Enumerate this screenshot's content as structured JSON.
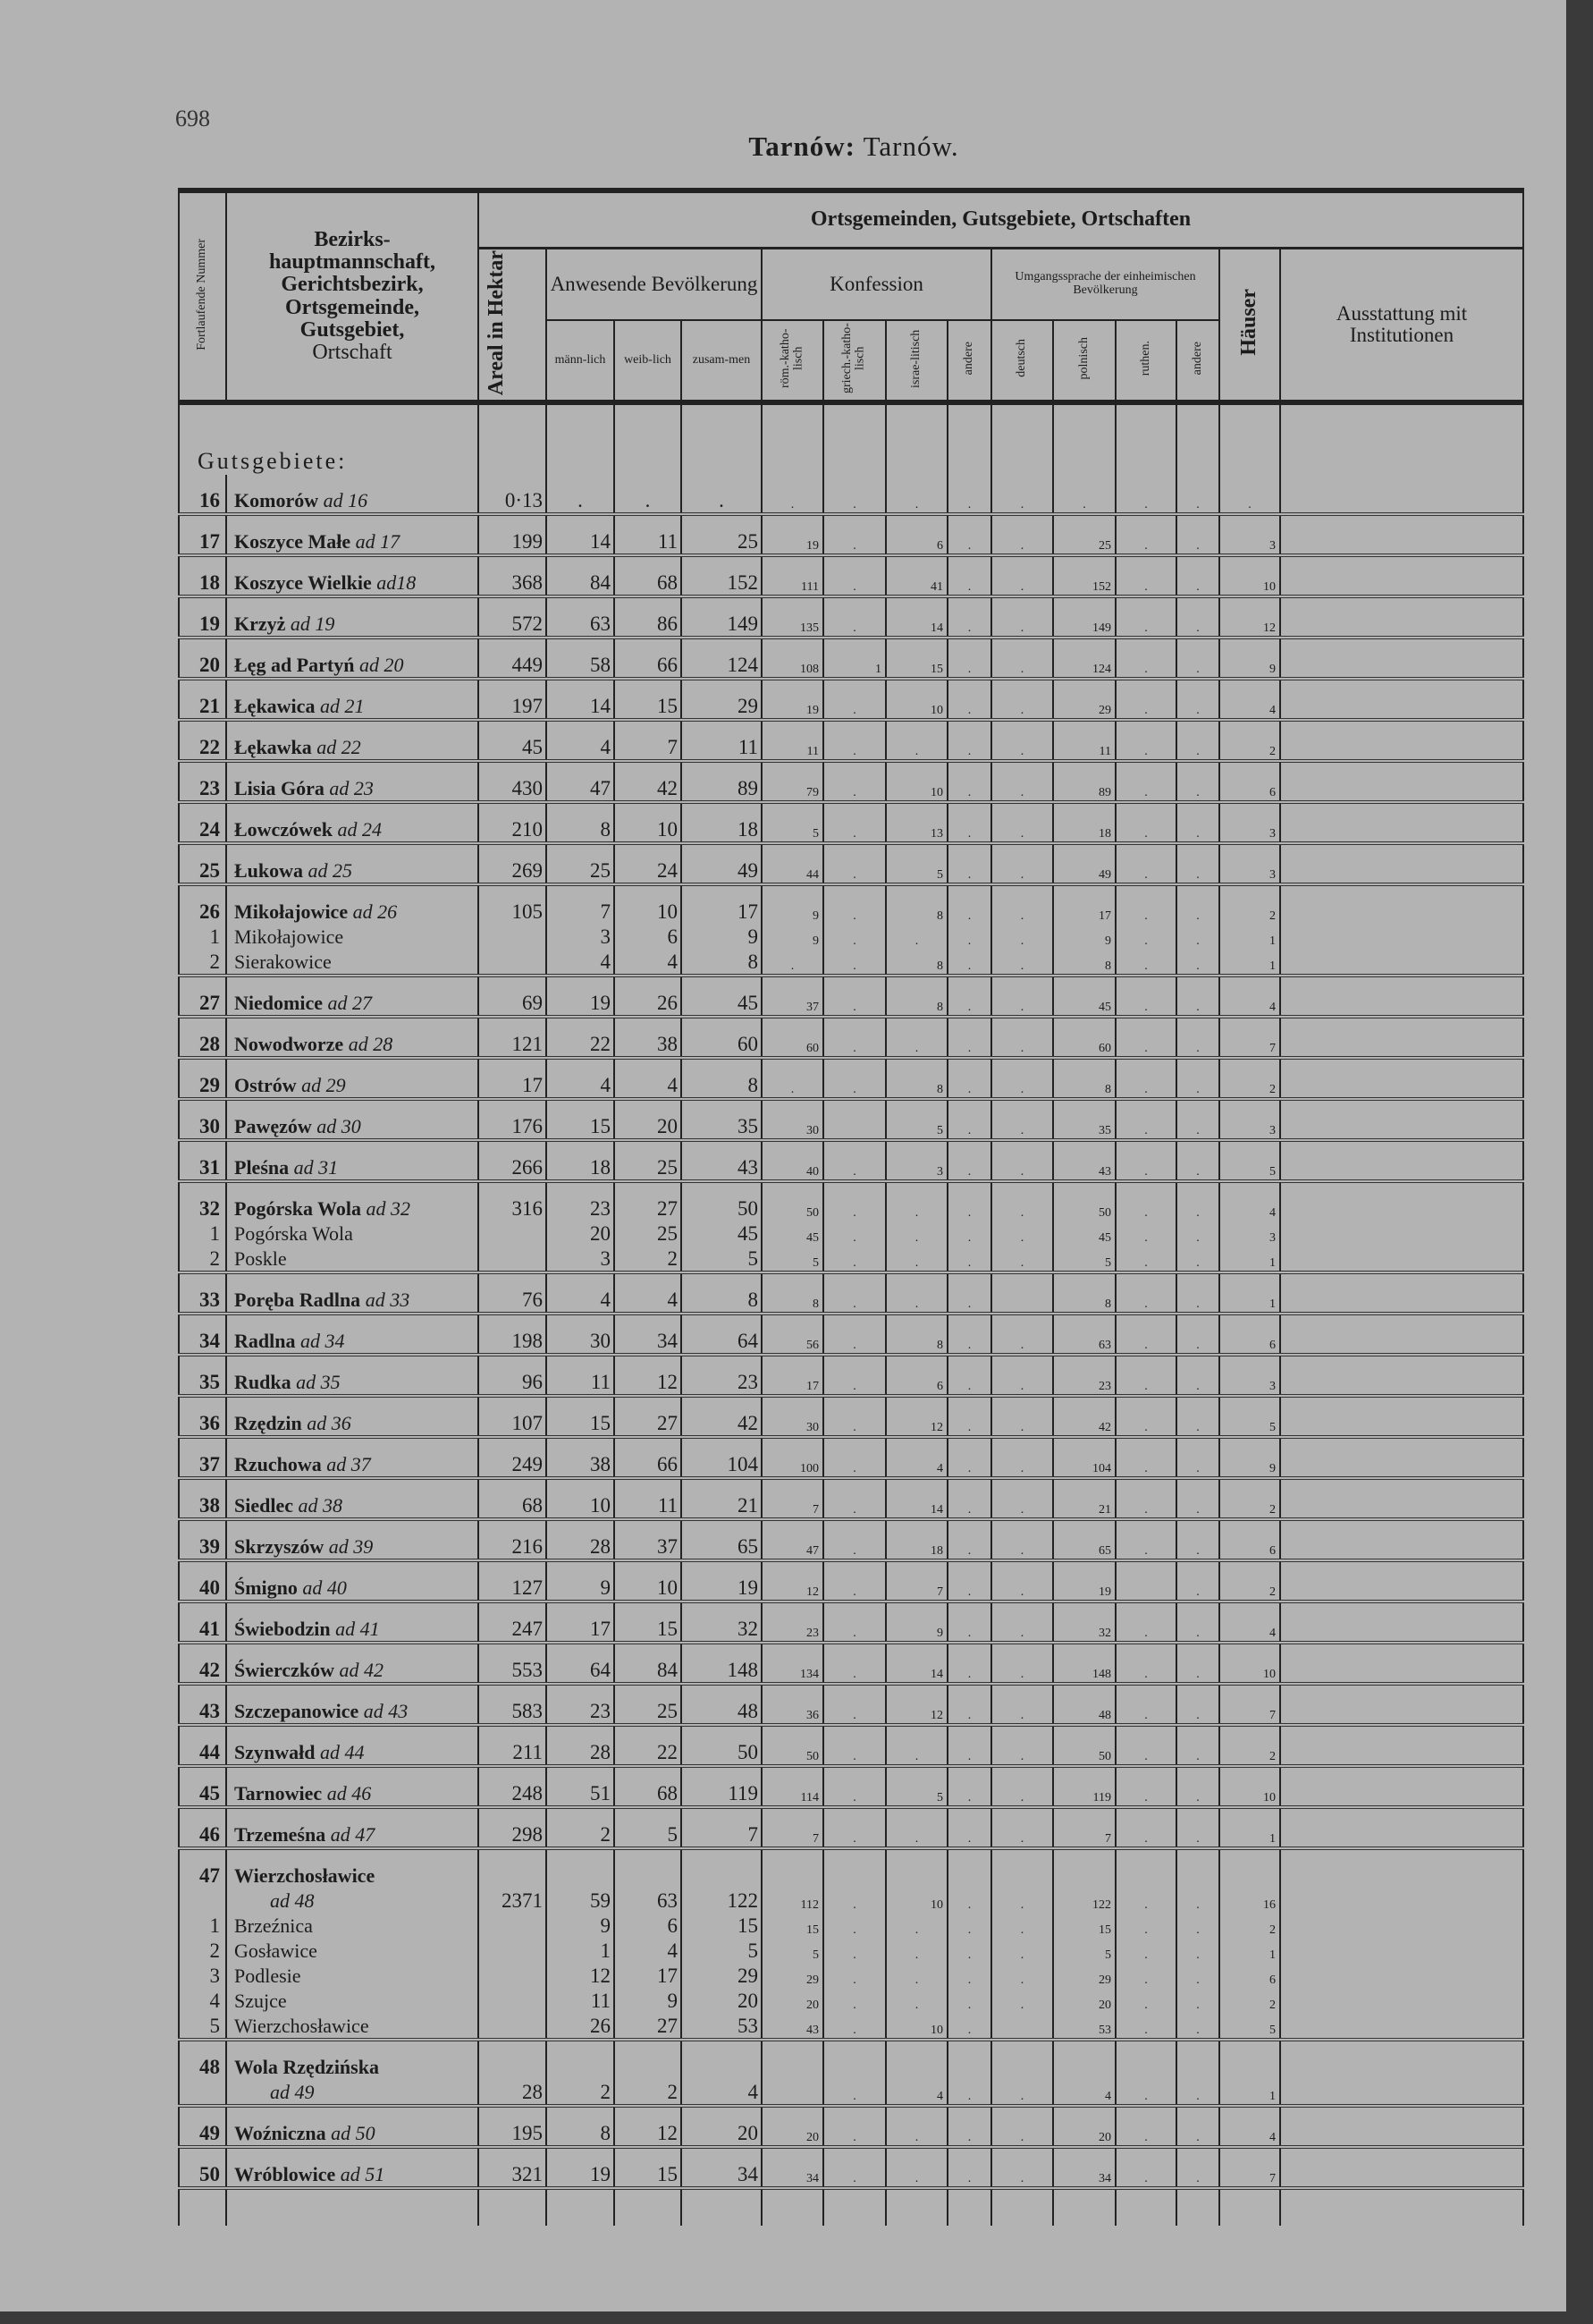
{
  "page_number": "698",
  "title": {
    "bold": "Tarnów:",
    "normal": "Tarnów."
  },
  "header": {
    "col_nr": "Fortlaufende Nummer",
    "col_name": [
      "Bezirks-",
      "hauptmannschaft,",
      "Gerichtsbezirk,",
      "Ortsgemeinde,",
      "Gutsgebiet,",
      "Ortschaft"
    ],
    "super": "Ortsgemeinden, Gutsgebiete, Ortschaften",
    "areal": "Areal in Hektar",
    "bevoelkerung": "Anwesende Bevölkerung",
    "konfession": "Konfession",
    "sprache": "Umgangssprache der einheimischen Bevölkerung",
    "haeuser": "Häuser",
    "ausstattung": "Ausstattung mit Institutionen",
    "sub_bev": [
      "männ-lich",
      "weib-lich",
      "zusam-men"
    ],
    "sub_konf": [
      "röm.-katho-lisch",
      "griech.-katho-lisch",
      "israe-litisch",
      "andere"
    ],
    "sub_sprache": [
      "deutsch",
      "polnisch",
      "ruthen.",
      "andere"
    ]
  },
  "section_label": "Gutsgebiete:",
  "groups": [
    {
      "lines": [
        {
          "nr": "16",
          "name": "Komorów",
          "ad": "ad 16",
          "v": [
            "0·13",
            ".",
            ".",
            ".",
            ".",
            ".",
            ".",
            ".",
            ".",
            ".",
            ".",
            ".",
            "."
          ]
        }
      ]
    },
    {
      "lines": [
        {
          "nr": "17",
          "name": "Koszyce Małe",
          "ad": "ad 17",
          "v": [
            "199",
            "14",
            "11",
            "25",
            "19",
            ".",
            "6",
            ".",
            ".",
            "25",
            ".",
            ".",
            "3"
          ]
        }
      ]
    },
    {
      "lines": [
        {
          "nr": "18",
          "name": "Koszyce Wielkie",
          "ad": "ad18",
          "v": [
            "368",
            "84",
            "68",
            "152",
            "111",
            ".",
            "41",
            ".",
            ".",
            "152",
            ".",
            ".",
            "10"
          ]
        }
      ]
    },
    {
      "lines": [
        {
          "nr": "19",
          "name": "Krzyż",
          "ad": "ad 19",
          "v": [
            "572",
            "63",
            "86",
            "149",
            "135",
            ".",
            "14",
            ".",
            ".",
            "149",
            ".",
            ".",
            "12"
          ]
        }
      ]
    },
    {
      "lines": [
        {
          "nr": "20",
          "name": "Łęg ad Partyń",
          "ad": "ad 20",
          "v": [
            "449",
            "58",
            "66",
            "124",
            "108",
            "1",
            "15",
            ".",
            ".",
            "124",
            ".",
            ".",
            "9"
          ]
        }
      ]
    },
    {
      "lines": [
        {
          "nr": "21",
          "name": "Łękawica",
          "ad": "ad 21",
          "v": [
            "197",
            "14",
            "15",
            "29",
            "19",
            ".",
            "10",
            ".",
            ".",
            "29",
            ".",
            ".",
            "4"
          ]
        }
      ]
    },
    {
      "lines": [
        {
          "nr": "22",
          "name": "Łękawka",
          "ad": "ad 22",
          "v": [
            "45",
            "4",
            "7",
            "11",
            "11",
            ".",
            ".",
            ".",
            ".",
            "11",
            ".",
            ".",
            "2"
          ]
        }
      ]
    },
    {
      "lines": [
        {
          "nr": "23",
          "name": "Lisia Góra",
          "ad": "ad 23",
          "v": [
            "430",
            "47",
            "42",
            "89",
            "79",
            ".",
            "10",
            ".",
            ".",
            "89",
            ".",
            ".",
            "6"
          ]
        }
      ]
    },
    {
      "lines": [
        {
          "nr": "24",
          "name": "Łowczówek",
          "ad": "ad 24",
          "v": [
            "210",
            "8",
            "10",
            "18",
            "5",
            ".",
            "13",
            ".",
            ".",
            "18",
            ".",
            ".",
            "3"
          ]
        }
      ]
    },
    {
      "lines": [
        {
          "nr": "25",
          "name": "Łukowa",
          "ad": "ad 25",
          "v": [
            "269",
            "25",
            "24",
            "49",
            "44",
            ".",
            "5",
            ".",
            ".",
            "49",
            ".",
            ".",
            "3"
          ]
        }
      ]
    },
    {
      "lines": [
        {
          "nr": "26",
          "name": "Mikołajowice",
          "ad": "ad 26",
          "v": [
            "105",
            "7",
            "10",
            "17",
            "9",
            ".",
            "8",
            ".",
            ".",
            "17",
            ".",
            ".",
            "2"
          ]
        },
        {
          "nr": "1",
          "name": "Mikołajowice",
          "ad": "",
          "sub": true,
          "v": [
            "",
            "3",
            "6",
            "9",
            "9",
            ".",
            ".",
            ".",
            ".",
            "9",
            ".",
            ".",
            "1"
          ]
        },
        {
          "nr": "2",
          "name": "Sierakowice",
          "ad": "",
          "sub": true,
          "v": [
            "",
            "4",
            "4",
            "8",
            ".",
            ".",
            "8",
            ".",
            ".",
            "8",
            ".",
            ".",
            "1"
          ]
        }
      ]
    },
    {
      "lines": [
        {
          "nr": "27",
          "name": "Niedomice",
          "ad": "ad 27",
          "v": [
            "69",
            "19",
            "26",
            "45",
            "37",
            ".",
            "8",
            ".",
            ".",
            "45",
            ".",
            ".",
            "4"
          ]
        }
      ]
    },
    {
      "lines": [
        {
          "nr": "28",
          "name": "Nowodworze",
          "ad": "ad 28",
          "v": [
            "121",
            "22",
            "38",
            "60",
            "60",
            ".",
            ".",
            ".",
            ".",
            "60",
            ".",
            ".",
            "7"
          ]
        }
      ]
    },
    {
      "lines": [
        {
          "nr": "29",
          "name": "Ostrów",
          "ad": "ad 29",
          "v": [
            "17",
            "4",
            "4",
            "8",
            ".",
            ".",
            "8",
            ".",
            ".",
            "8",
            ".",
            ".",
            "2"
          ]
        }
      ]
    },
    {
      "lines": [
        {
          "nr": "30",
          "name": "Pawęzów",
          "ad": "ad 30",
          "v": [
            "176",
            "15",
            "20",
            "35",
            "30",
            "",
            "5",
            ".",
            ".",
            "35",
            ".",
            ".",
            "3"
          ]
        }
      ]
    },
    {
      "lines": [
        {
          "nr": "31",
          "name": "Pleśna",
          "ad": "ad 31",
          "v": [
            "266",
            "18",
            "25",
            "43",
            "40",
            ".",
            "3",
            ".",
            ".",
            "43",
            ".",
            ".",
            "5"
          ]
        }
      ]
    },
    {
      "lines": [
        {
          "nr": "32",
          "name": "Pogórska Wola",
          "ad": "ad 32",
          "v": [
            "316",
            "23",
            "27",
            "50",
            "50",
            ".",
            ".",
            ".",
            ".",
            "50",
            ".",
            ".",
            "4"
          ]
        },
        {
          "nr": "1",
          "name": "Pogórska Wola",
          "ad": "",
          "sub": true,
          "v": [
            "",
            "20",
            "25",
            "45",
            "45",
            ".",
            ".",
            ".",
            ".",
            "45",
            ".",
            ".",
            "3"
          ]
        },
        {
          "nr": "2",
          "name": "Poskle",
          "ad": "",
          "sub": true,
          "v": [
            "",
            "3",
            "2",
            "5",
            "5",
            ".",
            ".",
            ".",
            ".",
            "5",
            ".",
            ".",
            "1"
          ]
        }
      ]
    },
    {
      "lines": [
        {
          "nr": "33",
          "name": "Poręba Radlna",
          "ad": "ad 33",
          "v": [
            "76",
            "4",
            "4",
            "8",
            "8",
            ".",
            ".",
            ".",
            "",
            "8",
            ".",
            ".",
            "1"
          ]
        }
      ]
    },
    {
      "lines": [
        {
          "nr": "34",
          "name": "Radlna",
          "ad": "ad 34",
          "v": [
            "198",
            "30",
            "34",
            "64",
            "56",
            ".",
            "8",
            ".",
            ".",
            "63",
            ".",
            ".",
            "6"
          ]
        }
      ]
    },
    {
      "lines": [
        {
          "nr": "35",
          "name": "Rudka",
          "ad": "ad 35",
          "v": [
            "96",
            "11",
            "12",
            "23",
            "17",
            ".",
            "6",
            ".",
            ".",
            "23",
            ".",
            ".",
            "3"
          ]
        }
      ]
    },
    {
      "lines": [
        {
          "nr": "36",
          "name": "Rzędzin",
          "ad": "ad 36",
          "v": [
            "107",
            "15",
            "27",
            "42",
            "30",
            ".",
            "12",
            ".",
            ".",
            "42",
            ".",
            ".",
            "5"
          ]
        }
      ]
    },
    {
      "lines": [
        {
          "nr": "37",
          "name": "Rzuchowa",
          "ad": "ad 37",
          "v": [
            "249",
            "38",
            "66",
            "104",
            "100",
            ".",
            "4",
            ".",
            ".",
            "104",
            ".",
            ".",
            "9"
          ]
        }
      ]
    },
    {
      "lines": [
        {
          "nr": "38",
          "name": "Siedlec",
          "ad": "ad 38",
          "v": [
            "68",
            "10",
            "11",
            "21",
            "7",
            ".",
            "14",
            ".",
            ".",
            "21",
            ".",
            ".",
            "2"
          ]
        }
      ]
    },
    {
      "lines": [
        {
          "nr": "39",
          "name": "Skrzyszów",
          "ad": "ad 39",
          "v": [
            "216",
            "28",
            "37",
            "65",
            "47",
            ".",
            "18",
            ".",
            ".",
            "65",
            ".",
            ".",
            "6"
          ]
        }
      ]
    },
    {
      "lines": [
        {
          "nr": "40",
          "name": "Śmigno",
          "ad": "ad 40",
          "v": [
            "127",
            "9",
            "10",
            "19",
            "12",
            ".",
            "7",
            ".",
            ".",
            "19",
            "",
            ".",
            "2"
          ]
        }
      ]
    },
    {
      "lines": [
        {
          "nr": "41",
          "name": "Świebodzin",
          "ad": "ad 41",
          "v": [
            "247",
            "17",
            "15",
            "32",
            "23",
            ".",
            "9",
            ".",
            ".",
            "32",
            ".",
            ".",
            "4"
          ]
        }
      ]
    },
    {
      "lines": [
        {
          "nr": "42",
          "name": "Świerczków",
          "ad": "ad 42",
          "v": [
            "553",
            "64",
            "84",
            "148",
            "134",
            ".",
            "14",
            ".",
            ".",
            "148",
            ".",
            ".",
            "10"
          ]
        }
      ]
    },
    {
      "lines": [
        {
          "nr": "43",
          "name": "Szczepanowice",
          "ad": "ad 43",
          "v": [
            "583",
            "23",
            "25",
            "48",
            "36",
            ".",
            "12",
            ".",
            ".",
            "48",
            ".",
            ".",
            "7"
          ]
        }
      ]
    },
    {
      "lines": [
        {
          "nr": "44",
          "name": "Szynwałd",
          "ad": "ad 44",
          "v": [
            "211",
            "28",
            "22",
            "50",
            "50",
            ".",
            ".",
            ".",
            ".",
            "50",
            ".",
            ".",
            "2"
          ]
        }
      ]
    },
    {
      "lines": [
        {
          "nr": "45",
          "name": "Tarnowiec",
          "ad": "ad 46",
          "v": [
            "248",
            "51",
            "68",
            "119",
            "114",
            ".",
            "5",
            ".",
            ".",
            "119",
            ".",
            ".",
            "10"
          ]
        }
      ]
    },
    {
      "lines": [
        {
          "nr": "46",
          "name": "Trzemeśna",
          "ad": "ad 47",
          "v": [
            "298",
            "2",
            "5",
            "7",
            "7",
            ".",
            ".",
            ".",
            ".",
            "7",
            ".",
            ".",
            "1"
          ]
        }
      ]
    },
    {
      "lines": [
        {
          "nr": "47",
          "name": "Wierzchosławice",
          "ad": "",
          "v": [
            "",
            "",
            "",
            "",
            "",
            "",
            "",
            "",
            "",
            "",
            "",
            "",
            ""
          ]
        },
        {
          "nr": "",
          "name": "",
          "ad": "ad 48",
          "v": [
            "2371",
            "59",
            "63",
            "122",
            "112",
            ".",
            "10",
            ".",
            ".",
            "122",
            ".",
            ".",
            "16"
          ]
        },
        {
          "nr": "1",
          "name": "Brzeźnica",
          "ad": "",
          "sub": true,
          "v": [
            "",
            "9",
            "6",
            "15",
            "15",
            ".",
            ".",
            ".",
            ".",
            "15",
            ".",
            ".",
            "2"
          ]
        },
        {
          "nr": "2",
          "name": "Gosławice",
          "ad": "",
          "sub": true,
          "v": [
            "",
            "1",
            "4",
            "5",
            "5",
            ".",
            ".",
            ".",
            ".",
            "5",
            ".",
            ".",
            "1"
          ]
        },
        {
          "nr": "3",
          "name": "Podlesie",
          "ad": "",
          "sub": true,
          "v": [
            "",
            "12",
            "17",
            "29",
            "29",
            ".",
            ".",
            ".",
            ".",
            "29",
            ".",
            ".",
            "6"
          ]
        },
        {
          "nr": "4",
          "name": "Szujce",
          "ad": "",
          "sub": true,
          "v": [
            "",
            "11",
            "9",
            "20",
            "20",
            ".",
            ".",
            ".",
            ".",
            "20",
            ".",
            ".",
            "2"
          ]
        },
        {
          "nr": "5",
          "name": "Wierzchosławice",
          "ad": "",
          "sub": true,
          "v": [
            "",
            "26",
            "27",
            "53",
            "43",
            ".",
            "10",
            ".",
            "",
            "53",
            ".",
            ".",
            "5"
          ]
        }
      ]
    },
    {
      "lines": [
        {
          "nr": "48",
          "name": "Wola Rzędzińska",
          "ad": "",
          "v": [
            "",
            "",
            "",
            "",
            "",
            "",
            "",
            "",
            "",
            "",
            "",
            "",
            ""
          ]
        },
        {
          "nr": "",
          "name": "",
          "ad": "ad 49",
          "v": [
            "28",
            "2",
            "2",
            "4",
            "",
            ".",
            "4",
            ".",
            ".",
            "4",
            ".",
            ".",
            "1"
          ]
        }
      ]
    },
    {
      "lines": [
        {
          "nr": "49",
          "name": "Woźniczna",
          "ad": "ad 50",
          "v": [
            "195",
            "8",
            "12",
            "20",
            "20",
            ".",
            ".",
            ".",
            ".",
            "20",
            ".",
            ".",
            "4"
          ]
        }
      ]
    },
    {
      "lines": [
        {
          "nr": "50",
          "name": "Wróblowice",
          "ad": "ad 51",
          "v": [
            "321",
            "19",
            "15",
            "34",
            "34",
            ".",
            ".",
            ".",
            ".",
            "34",
            ".",
            ".",
            "7"
          ]
        }
      ]
    }
  ]
}
